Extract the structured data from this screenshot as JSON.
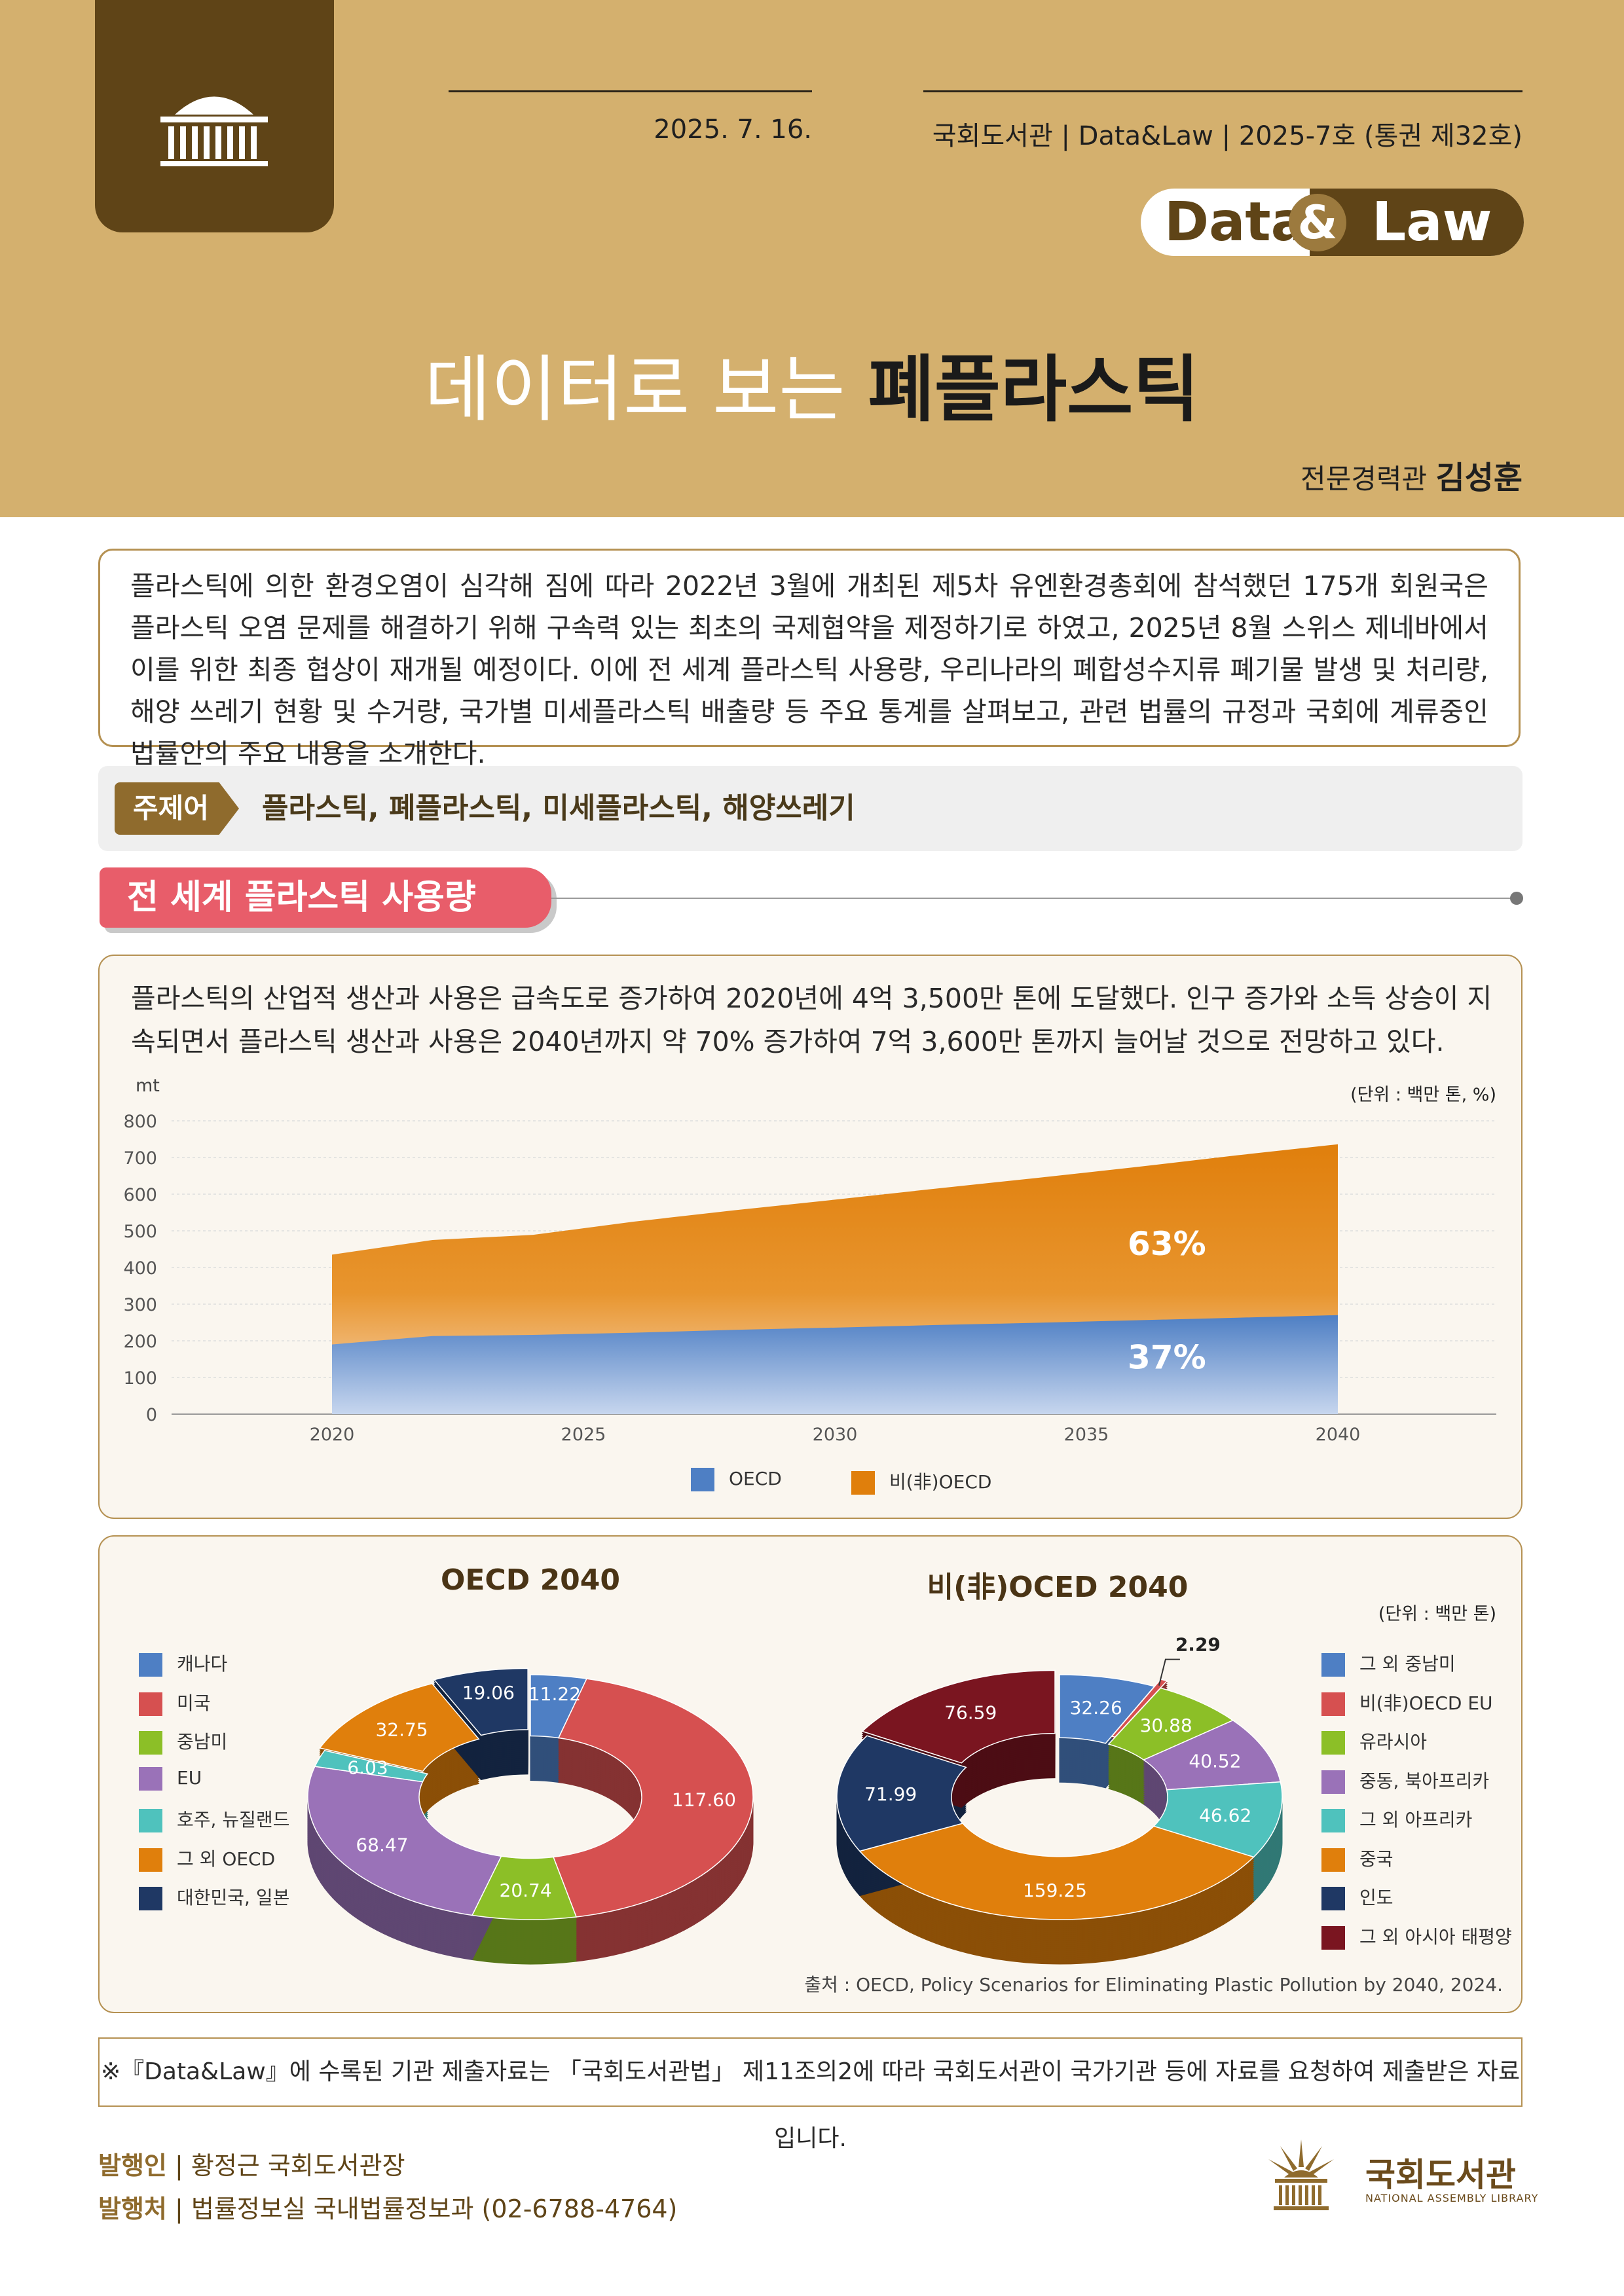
{
  "header": {
    "date": "2025. 7. 16.",
    "publication": "국회도서관 | Data&Law | 2025-7호 (통권 제32호)",
    "badge": {
      "data": "Data",
      "amp": "&",
      "law": "Law"
    },
    "title_light": "데이터로 보는 ",
    "title_bold": "폐플라스틱",
    "author_role": "전문경력관 ",
    "author_name": "김성훈"
  },
  "intro": "플라스틱에 의한 환경오염이 심각해 짐에 따라 2022년 3월에 개최된 제5차 유엔환경총회에 참석했던 175개 회원국은 플라스틱 오염 문제를 해결하기 위해 구속력 있는 최초의 국제협약을 제정하기로 하였고, 2025년 8월 스위스 제네바에서 이를 위한 최종 협상이 재개될 예정이다. 이에 전 세계 플라스틱 사용량, 우리나라의 폐합성수지류 폐기물 발생 및 처리량, 해양 쓰레기 현황 및 수거량, 국가별 미세플라스틱 배출량 등 주요 통계를 살펴보고, 관련 법률의 규정과 국회에 계류중인 법률안의 주요 내용을 소개한다.",
  "keywords": {
    "label": "주제어",
    "text": "플라스틱, 폐플라스틱, 미세플라스틱, 해양쓰레기"
  },
  "section": {
    "title": "전 세계 플라스틱 사용량",
    "description": "플라스틱의 산업적 생산과 사용은 급속도로 증가하여 2020년에 4억 3,500만 톤에 도달했다. 인구 증가와 소득 상승이 지속되면서 플라스틱 생산과 사용은 2040년까지 약 70% 증가하여 7억 3,600만 톤까지 늘어날 것으로 전망하고 있다."
  },
  "colors": {
    "gold": "#d4b06e",
    "brown": "#5f4417",
    "pink": "#e85d6a",
    "oecd_blue": "#4e7fc4",
    "nonoecd_orange": "#e07f0c"
  },
  "chart_data": [
    {
      "type": "area",
      "title": "",
      "ylabel": "mt",
      "unit_note": "(단위 : 백만 톤, %)",
      "x": [
        2020,
        2022,
        2024,
        2026,
        2028,
        2030,
        2032,
        2034,
        2036,
        2038,
        2040
      ],
      "xticks": [
        2020,
        2025,
        2030,
        2035,
        2040
      ],
      "yticks": [
        0,
        100,
        200,
        300,
        400,
        500,
        600,
        700,
        800
      ],
      "ylim": [
        0,
        800
      ],
      "stacked": true,
      "series": [
        {
          "name": "OECD",
          "color": "#4e7fc4",
          "values": [
            190,
            213,
            216,
            222,
            230,
            236,
            243,
            249,
            256,
            263,
            270
          ]
        },
        {
          "name": "비(非)OECD",
          "color": "#e07f0c",
          "values": [
            245,
            262,
            273,
            303,
            326,
            349,
            372,
            395,
            418,
            443,
            466
          ]
        }
      ],
      "annotations": [
        {
          "text": "63%",
          "series": "비(非)OECD"
        },
        {
          "text": "37%",
          "series": "OECD"
        }
      ],
      "legend": "bottom"
    },
    {
      "type": "pie",
      "title": "OECD 2040",
      "unit_note": "",
      "labels": [
        "캐나다",
        "미국",
        "중남미",
        "EU",
        "호주, 뉴질랜드",
        "그 외 OECD",
        "대한민국, 일본"
      ],
      "values": [
        11.22,
        117.6,
        20.74,
        68.47,
        6.03,
        32.75,
        19.06
      ],
      "value_labels": [
        "11.22",
        "117.60",
        "20.74",
        "68.47",
        "6.03",
        "32.75",
        "19.06"
      ],
      "colors": [
        "#4e7fc4",
        "#d65050",
        "#8cbf27",
        "#9a72b8",
        "#4fc2bd",
        "#e07f0c",
        "#1f3864"
      ],
      "legend": "left"
    },
    {
      "type": "pie",
      "title": "비(非)OCED 2040",
      "unit_note": "(단위 : 백만 톤)",
      "labels": [
        "그 외 중남미",
        "비(非)OECD EU",
        "유라시아",
        "중동, 북아프리카",
        "그 외 아프리카",
        "중국",
        "인도",
        "그 외 아시아 태평양"
      ],
      "values": [
        32.26,
        2.29,
        30.88,
        40.52,
        46.62,
        159.25,
        71.99,
        76.59
      ],
      "value_labels": [
        "32.26",
        "2.29",
        "30.88",
        "40.52",
        "46.62",
        "159.25",
        "71.99",
        "76.59"
      ],
      "colors": [
        "#4e7fc4",
        "#d65050",
        "#8cbf27",
        "#9a72b8",
        "#4fc2bd",
        "#e07f0c",
        "#1f3864",
        "#7a1520"
      ],
      "legend": "right"
    }
  ],
  "source": "출처 : OECD, Policy Scenarios for Eliminating Plastic Pollution by 2040, 2024.",
  "note": "※『Data&Law』에 수록된 기관 제출자료는 「국회도서관법」 제11조의2에 따라 국회도서관이 국가기관 등에 자료를 요청하여 제출받은 자료입니다.",
  "footer": {
    "publisher_label": "발행인",
    "publisher_value": "황정근 국회도서관장",
    "office_label": "발행처",
    "office_value": "법률정보실 국내법률정보과 (02-6788-4764)",
    "library_name": "국회도서관",
    "library_name_en": "NATIONAL ASSEMBLY LIBRARY"
  }
}
